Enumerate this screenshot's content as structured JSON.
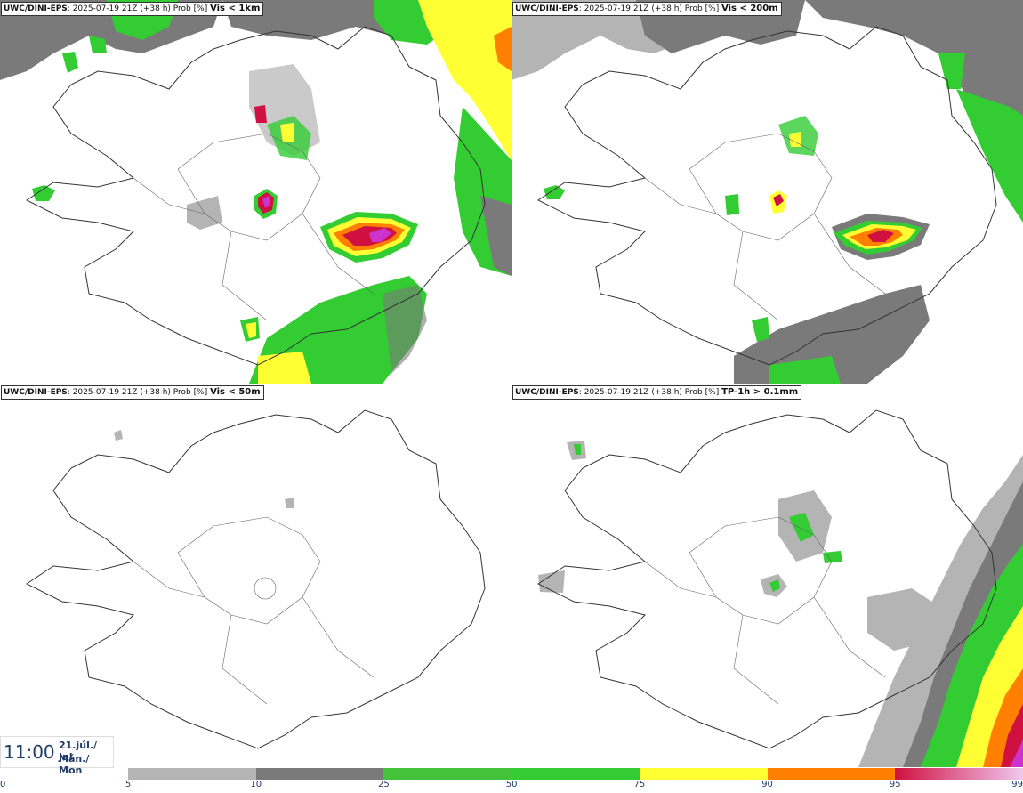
{
  "panels": [
    {
      "model": "UWC/DINI-EPS",
      "run": ": 2025-07-19 21Z (+38 h) Prob [%] ",
      "variable": "Vis < 1km"
    },
    {
      "model": "UWC/DINI-EPS",
      "run": ": 2025-07-19 21Z (+38 h) Prob [%] ",
      "variable": "Vis < 200m"
    },
    {
      "model": "UWC/DINI-EPS",
      "run": ": 2025-07-19 21Z (+38 h) Prob [%] ",
      "variable": "Vis < 50m"
    },
    {
      "model": "UWC/DINI-EPS",
      "run": ": 2025-07-19 21Z (+38 h) Prob [%] ",
      "variable": "TP-1h > 0.1mm"
    }
  ],
  "valid_time": {
    "time": "11:00",
    "date_local": "21.júl./ Jul",
    "day": "Mán./ Mon"
  },
  "colorbar": {
    "ticks": [
      "0",
      "5",
      "10",
      "25",
      "50",
      "75",
      "90",
      "95",
      "99"
    ],
    "colors": [
      "#ffffff",
      "#b4b4b4",
      "#7a7a7a",
      "#44c23a",
      "#33cc33",
      "#ffff33",
      "#ff7f00",
      "#d01040",
      "#cc33cc"
    ]
  },
  "icons": {
    "coastline": "iceland-coastline-icon"
  }
}
